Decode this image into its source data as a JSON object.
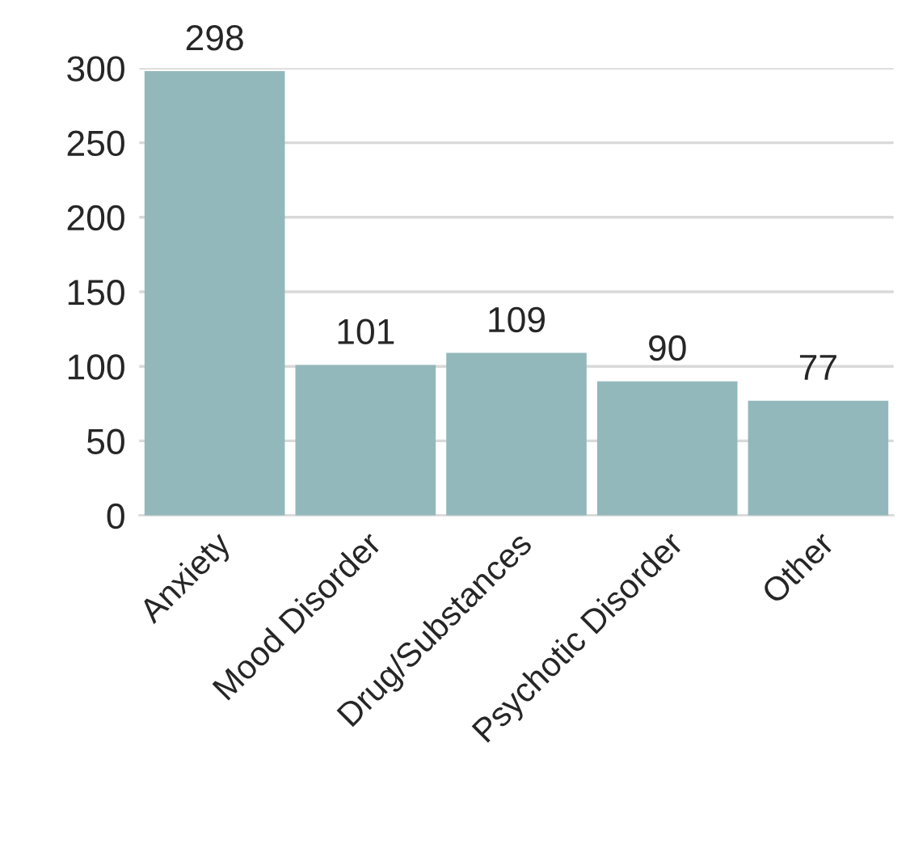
{
  "chart_data": {
    "type": "bar",
    "categories": [
      "Anxiety",
      "Mood Disorder",
      "Drug/Substances",
      "Psychotic Disorder",
      "Other"
    ],
    "values": [
      298,
      101,
      109,
      90,
      77
    ],
    "data_labels": true,
    "color": "#93b8bb",
    "ylim": [
      0,
      300
    ],
    "yticks": [
      0,
      50,
      100,
      150,
      200,
      250,
      300
    ],
    "grid": "y"
  }
}
